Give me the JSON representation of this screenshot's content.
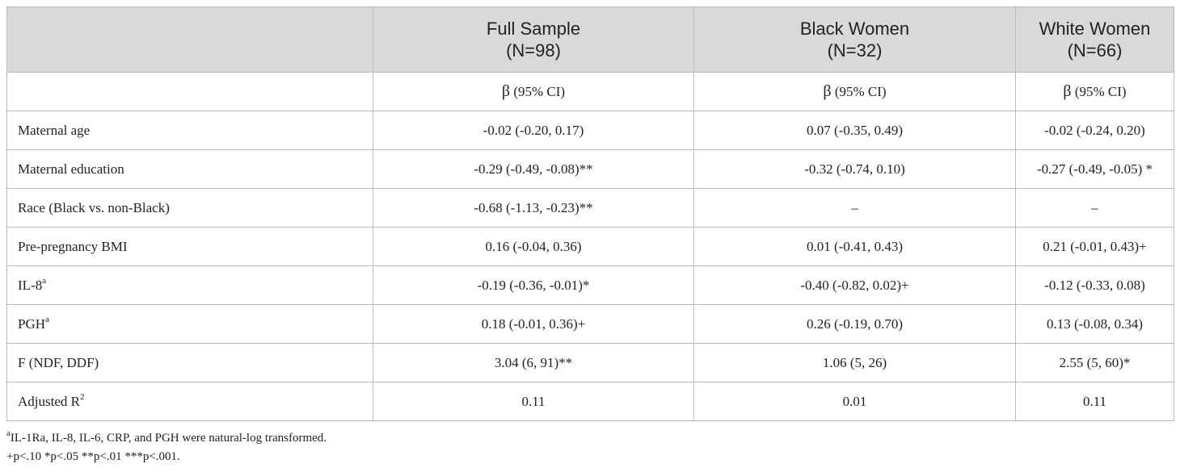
{
  "header": {
    "columns": [
      {
        "group": "Full Sample",
        "n": "(N=98)"
      },
      {
        "group": "Black Women",
        "n": "(N=32)"
      },
      {
        "group": "White Women",
        "n": "(N=66)"
      }
    ],
    "stat_label_symbol": "β",
    "stat_label_text": " (95% CI)"
  },
  "rows": [
    {
      "label": "Maternal age",
      "sup": "",
      "values": [
        "-0.02 (-0.20, 0.17)",
        "0.07 (-0.35, 0.49)",
        "-0.02 (-0.24, 0.20)"
      ]
    },
    {
      "label": "Maternal education",
      "sup": "",
      "values": [
        "-0.29 (-0.49, -0.08)**",
        "-0.32 (-0.74, 0.10)",
        "-0.27 (-0.49, -0.05) *"
      ]
    },
    {
      "label": "Race (Black vs. non-Black)",
      "sup": "",
      "values": [
        "-0.68 (-1.13, -0.23)**",
        "–",
        "–"
      ]
    },
    {
      "label": "Pre-pregnancy BMI",
      "sup": "",
      "values": [
        "0.16 (-0.04, 0.36)",
        "0.01 (-0.41, 0.43)",
        "0.21 (-0.01, 0.43)+"
      ]
    },
    {
      "label": "IL-8",
      "sup": "a",
      "values": [
        "-0.19 (-0.36, -0.01)*",
        "-0.40 (-0.82, 0.02)+",
        "-0.12 (-0.33, 0.08)"
      ]
    },
    {
      "label": "PGH",
      "sup": "a",
      "values": [
        "0.18 (-0.01, 0.36)+",
        "0.26 (-0.19, 0.70)",
        "0.13 (-0.08, 0.34)"
      ]
    },
    {
      "label": "F (NDF, DDF)",
      "sup": "",
      "values": [
        "3.04 (6, 91)**",
        "1.06 (5, 26)",
        "2.55 (5, 60)*"
      ]
    },
    {
      "label": "Adjusted R",
      "sup": "2",
      "values": [
        "0.11",
        "0.01",
        "0.11"
      ]
    }
  ],
  "footnotes": {
    "transform_sup": "a",
    "transform_text": "IL-1Ra, IL-8, IL-6, CRP, and PGH were natural-log transformed.",
    "significance_text": "+p<.10 *p<.05 **p<.01 ***p<.001."
  }
}
